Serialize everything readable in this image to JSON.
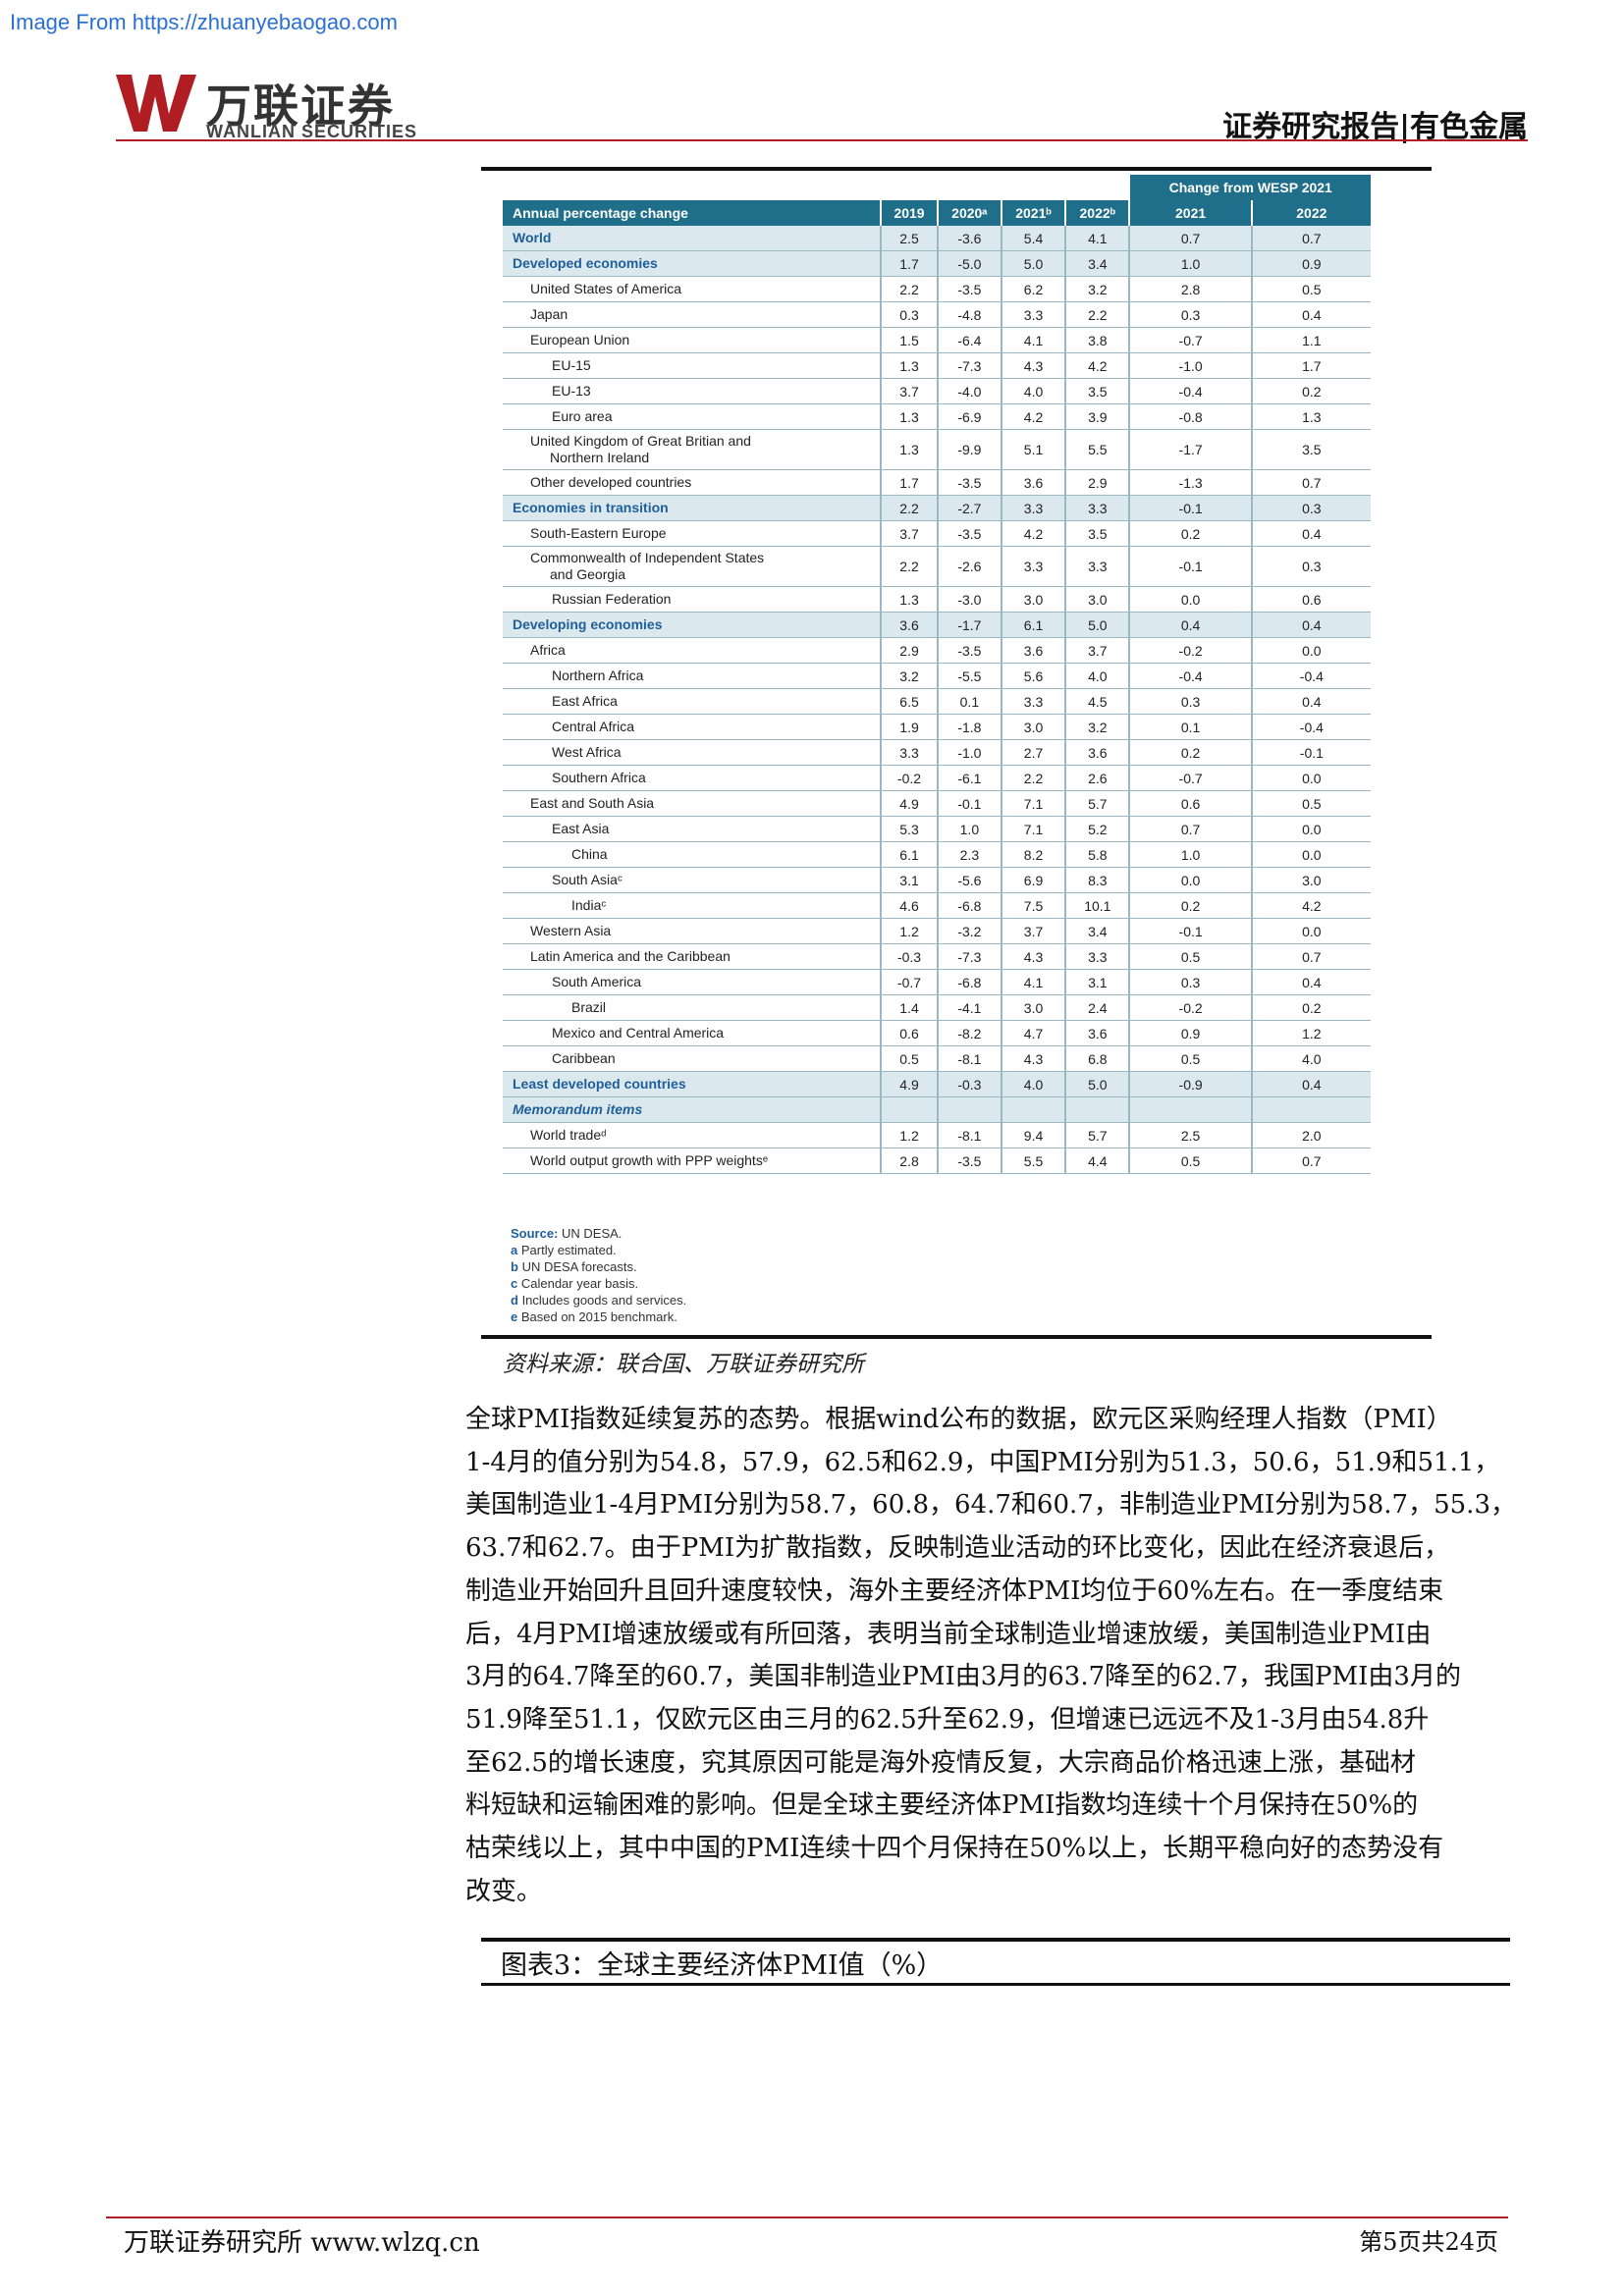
{
  "watermark": "Image From https://zhuanyebaogao.com",
  "logo": {
    "cn": "万联证券",
    "en": "WANLIAN SECURITIES"
  },
  "header": {
    "right": "证券研究报告|有色金属"
  },
  "table": {
    "group_header": "Change from WESP 2021",
    "columns": [
      "Annual percentage change",
      "2019",
      "2020ᵃ",
      "2021ᵇ",
      "2022ᵇ",
      "2021",
      "2022"
    ],
    "rows": [
      {
        "label": "World",
        "vals": [
          "2.5",
          "-3.6",
          "5.4",
          "4.1",
          "0.7",
          "0.7"
        ]
      },
      {
        "label": "Developed economies",
        "vals": [
          "1.7",
          "-5.0",
          "5.0",
          "3.4",
          "1.0",
          "0.9"
        ]
      },
      {
        "label": "United States of America",
        "vals": [
          "2.2",
          "-3.5",
          "6.2",
          "3.2",
          "2.8",
          "0.5"
        ]
      },
      {
        "label": "Japan",
        "vals": [
          "0.3",
          "-4.8",
          "3.3",
          "2.2",
          "0.3",
          "0.4"
        ]
      },
      {
        "label": "European Union",
        "vals": [
          "1.5",
          "-6.4",
          "4.1",
          "3.8",
          "-0.7",
          "1.1"
        ]
      },
      {
        "label": "EU-15",
        "vals": [
          "1.3",
          "-7.3",
          "4.3",
          "4.2",
          "-1.0",
          "1.7"
        ]
      },
      {
        "label": "EU-13",
        "vals": [
          "3.7",
          "-4.0",
          "4.0",
          "3.5",
          "-0.4",
          "0.2"
        ]
      },
      {
        "label": "Euro area",
        "vals": [
          "1.3",
          "-6.9",
          "4.2",
          "3.9",
          "-0.8",
          "1.3"
        ]
      },
      {
        "label": "United Kingdom of Great Britian and",
        "label2": "Northern Ireland",
        "vals": [
          "1.3",
          "-9.9",
          "5.1",
          "5.5",
          "-1.7",
          "3.5"
        ]
      },
      {
        "label": "Other developed countries",
        "vals": [
          "1.7",
          "-3.5",
          "3.6",
          "2.9",
          "-1.3",
          "0.7"
        ]
      },
      {
        "label": "Economies in transition",
        "vals": [
          "2.2",
          "-2.7",
          "3.3",
          "3.3",
          "-0.1",
          "0.3"
        ]
      },
      {
        "label": "South-Eastern Europe",
        "vals": [
          "3.7",
          "-3.5",
          "4.2",
          "3.5",
          "0.2",
          "0.4"
        ]
      },
      {
        "label": "Commonwealth of Independent States",
        "label2": "and Georgia",
        "vals": [
          "2.2",
          "-2.6",
          "3.3",
          "3.3",
          "-0.1",
          "0.3"
        ]
      },
      {
        "label": "Russian Federation",
        "vals": [
          "1.3",
          "-3.0",
          "3.0",
          "3.0",
          "0.0",
          "0.6"
        ]
      },
      {
        "label": "Developing economies",
        "vals": [
          "3.6",
          "-1.7",
          "6.1",
          "5.0",
          "0.4",
          "0.4"
        ]
      },
      {
        "label": "Africa",
        "vals": [
          "2.9",
          "-3.5",
          "3.6",
          "3.7",
          "-0.2",
          "0.0"
        ]
      },
      {
        "label": "Northern Africa",
        "vals": [
          "3.2",
          "-5.5",
          "5.6",
          "4.0",
          "-0.4",
          "-0.4"
        ]
      },
      {
        "label": "East Africa",
        "vals": [
          "6.5",
          "0.1",
          "3.3",
          "4.5",
          "0.3",
          "0.4"
        ]
      },
      {
        "label": "Central Africa",
        "vals": [
          "1.9",
          "-1.8",
          "3.0",
          "3.2",
          "0.1",
          "-0.4"
        ]
      },
      {
        "label": "West Africa",
        "vals": [
          "3.3",
          "-1.0",
          "2.7",
          "3.6",
          "0.2",
          "-0.1"
        ]
      },
      {
        "label": "Southern Africa",
        "vals": [
          "-0.2",
          "-6.1",
          "2.2",
          "2.6",
          "-0.7",
          "0.0"
        ]
      },
      {
        "label": "East and South Asia",
        "vals": [
          "4.9",
          "-0.1",
          "7.1",
          "5.7",
          "0.6",
          "0.5"
        ]
      },
      {
        "label": "East Asia",
        "vals": [
          "5.3",
          "1.0",
          "7.1",
          "5.2",
          "0.7",
          "0.0"
        ]
      },
      {
        "label": "China",
        "vals": [
          "6.1",
          "2.3",
          "8.2",
          "5.8",
          "1.0",
          "0.0"
        ]
      },
      {
        "label": "South Asiaᶜ",
        "vals": [
          "3.1",
          "-5.6",
          "6.9",
          "8.3",
          "0.0",
          "3.0"
        ]
      },
      {
        "label": "Indiaᶜ",
        "vals": [
          "4.6",
          "-6.8",
          "7.5",
          "10.1",
          "0.2",
          "4.2"
        ]
      },
      {
        "label": "Western Asia",
        "vals": [
          "1.2",
          "-3.2",
          "3.7",
          "3.4",
          "-0.1",
          "0.0"
        ]
      },
      {
        "label": "Latin America and the Caribbean",
        "vals": [
          "-0.3",
          "-7.3",
          "4.3",
          "3.3",
          "0.5",
          "0.7"
        ]
      },
      {
        "label": "South America",
        "vals": [
          "-0.7",
          "-6.8",
          "4.1",
          "3.1",
          "0.3",
          "0.4"
        ]
      },
      {
        "label": "Brazil",
        "vals": [
          "1.4",
          "-4.1",
          "3.0",
          "2.4",
          "-0.2",
          "0.2"
        ]
      },
      {
        "label": "Mexico and Central America",
        "vals": [
          "0.6",
          "-8.2",
          "4.7",
          "3.6",
          "0.9",
          "1.2"
        ]
      },
      {
        "label": "Caribbean",
        "vals": [
          "0.5",
          "-8.1",
          "4.3",
          "6.8",
          "0.5",
          "4.0"
        ]
      },
      {
        "label": "Least developed countries",
        "vals": [
          "4.9",
          "-0.3",
          "4.0",
          "5.0",
          "-0.9",
          "0.4"
        ]
      },
      {
        "label": "Memorandum items",
        "vals": [
          "",
          "",
          "",
          "",
          "",
          ""
        ]
      },
      {
        "label": "World tradeᵈ",
        "vals": [
          "1.2",
          "-8.1",
          "9.4",
          "5.7",
          "2.5",
          "2.0"
        ]
      },
      {
        "label": "World output growth with PPP weightsᵉ",
        "vals": [
          "2.8",
          "-3.5",
          "5.5",
          "4.4",
          "0.5",
          "0.7"
        ]
      }
    ],
    "notes": [
      {
        "k": "Source:",
        "t": " UN DESA."
      },
      {
        "k": "a",
        "t": "  Partly estimated."
      },
      {
        "k": "b",
        "t": "  UN DESA forecasts."
      },
      {
        "k": "c",
        "t": "  Calendar year basis."
      },
      {
        "k": "d",
        "t": "  Includes goods and services."
      },
      {
        "k": "e",
        "t": "  Based on 2015 benchmark."
      }
    ]
  },
  "source": "资料来源：联合国、万联证券研究所",
  "paragraph_lines": [
    "全球PMI指数延续复苏的态势。根据wind公布的数据，欧元区采购经理人指数（PMI）",
    "1-4月的值分别为54.8，57.9，62.5和62.9，中国PMI分别为51.3，50.6，51.9和51.1，",
    "美国制造业1-4月PMI分别为58.7，60.8，64.7和60.7，非制造业PMI分别为58.7，55.3，",
    "63.7和62.7。由于PMI为扩散指数，反映制造业活动的环比变化，因此在经济衰退后，",
    "制造业开始回升且回升速度较快，海外主要经济体PMI均位于60%左右。在一季度结束",
    "后，4月PMI增速放缓或有所回落，表明当前全球制造业增速放缓，美国制造业PMI由",
    "3月的64.7降至的60.7，美国非制造业PMI由3月的63.7降至的62.7，我国PMI由3月的",
    "51.9降至51.1，仅欧元区由三月的62.5升至62.9，但增速已远远不及1-3月由54.8升",
    "至62.5的增长速度，究其原因可能是海外疫情反复，大宗商品价格迅速上涨，基础材",
    "料短缺和运输困难的影响。但是全球主要经济体PMI指数均连续十个月保持在50%的",
    "枯荣线以上，其中中国的PMI连续十四个月保持在50%以上，长期平稳向好的态势没有",
    "改变。"
  ],
  "figure_title": "图表3：全球主要经济体PMI值（%）",
  "footer": {
    "left": "万联证券研究所  www.wlzq.cn",
    "right": "第5页共24页"
  },
  "colors": {
    "header_blue": "#1f6f8b",
    "row_highlight": "#dbe8ee",
    "accent_red": "#b01e23"
  }
}
